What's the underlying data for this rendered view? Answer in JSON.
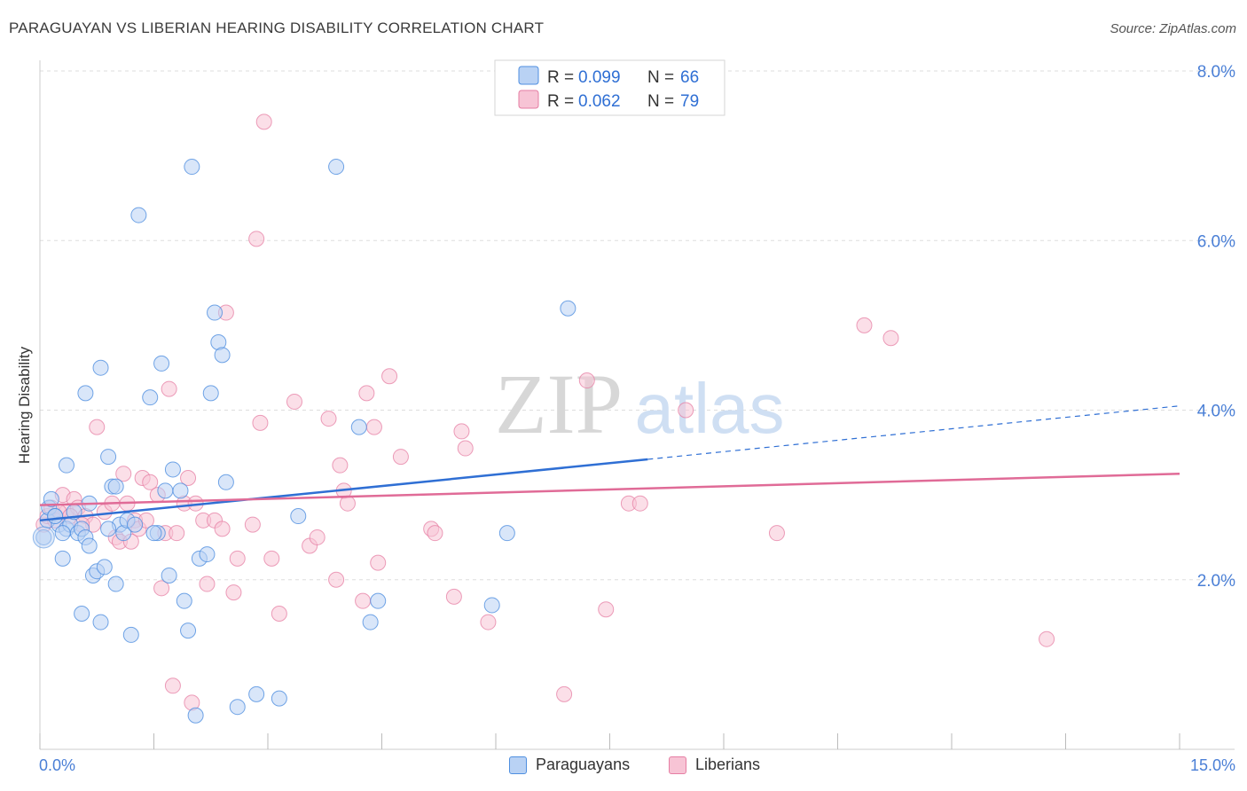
{
  "title": "PARAGUAYAN VS LIBERIAN HEARING DISABILITY CORRELATION CHART",
  "source": "Source: ZipAtlas.com",
  "watermark": {
    "zip": "ZIP",
    "atlas": "atlas"
  },
  "colors": {
    "blue": "#4f8fe0",
    "blue_fill": "#b9d2f4",
    "blue_line": "#2f6fd4",
    "pink": "#e67ea3",
    "pink_fill": "#f7c4d5",
    "pink_line": "#e06b97",
    "axis_text": "#4a7fd6",
    "grid": "#dddddd"
  },
  "legend_top": [
    {
      "r_label": "R = ",
      "r_value": "0.099",
      "n_label": "N = ",
      "n_value": "66"
    },
    {
      "r_label": "R = ",
      "r_value": "0.062",
      "n_label": "N = ",
      "n_value": "79"
    }
  ],
  "legend_bottom": [
    "Paraguayans",
    "Liberians"
  ],
  "chart_data": {
    "type": "scatter",
    "title": "PARAGUAYAN VS LIBERIAN HEARING DISABILITY CORRELATION CHART",
    "xlabel": "",
    "ylabel": "Hearing Disability",
    "xlim": [
      0,
      15
    ],
    "ylim": [
      0,
      8
    ],
    "x_tick_labels": [
      "0.0%",
      "15.0%"
    ],
    "y_ticks": [
      2,
      4,
      6,
      8
    ],
    "y_tick_labels": [
      "2.0%",
      "4.0%",
      "6.0%",
      "8.0%"
    ],
    "x_minor_ticks": [
      0,
      1.5,
      3,
      4.5,
      6,
      7.5,
      9,
      10.5,
      12,
      13.5,
      15
    ],
    "series": [
      {
        "name": "Paraguayans",
        "r": 0.099,
        "n": 66,
        "trend": {
          "x_solid": [
            0,
            8.0
          ],
          "x_dashed": [
            8.0,
            15
          ],
          "y_at": [
            2.7,
            4.05
          ]
        },
        "points": [
          [
            0.05,
            2.5
          ],
          [
            0.1,
            2.7
          ],
          [
            0.12,
            2.85
          ],
          [
            0.15,
            2.95
          ],
          [
            0.2,
            2.75
          ],
          [
            0.25,
            2.65
          ],
          [
            0.3,
            2.25
          ],
          [
            0.35,
            2.6
          ],
          [
            0.4,
            2.65
          ],
          [
            0.5,
            2.55
          ],
          [
            0.55,
            2.6
          ],
          [
            0.6,
            2.5
          ],
          [
            0.65,
            2.4
          ],
          [
            0.35,
            3.35
          ],
          [
            0.6,
            4.2
          ],
          [
            0.8,
            4.5
          ],
          [
            0.9,
            3.45
          ],
          [
            0.95,
            3.1
          ],
          [
            1.0,
            3.1
          ],
          [
            1.05,
            2.65
          ],
          [
            1.1,
            2.55
          ],
          [
            0.7,
            2.05
          ],
          [
            0.75,
            2.1
          ],
          [
            0.85,
            2.15
          ],
          [
            1.0,
            1.95
          ],
          [
            1.15,
            2.7
          ],
          [
            0.55,
            1.6
          ],
          [
            0.8,
            1.5
          ],
          [
            1.2,
            1.35
          ],
          [
            1.3,
            6.3
          ],
          [
            1.45,
            4.15
          ],
          [
            1.55,
            2.55
          ],
          [
            1.6,
            4.55
          ],
          [
            1.65,
            3.05
          ],
          [
            1.7,
            2.05
          ],
          [
            1.75,
            3.3
          ],
          [
            1.85,
            3.05
          ],
          [
            1.9,
            1.75
          ],
          [
            1.95,
            1.4
          ],
          [
            2.0,
            6.87
          ],
          [
            2.05,
            0.4
          ],
          [
            2.1,
            2.25
          ],
          [
            2.2,
            2.3
          ],
          [
            2.25,
            4.2
          ],
          [
            2.3,
            5.15
          ],
          [
            2.35,
            4.8
          ],
          [
            2.4,
            4.65
          ],
          [
            2.45,
            3.15
          ],
          [
            2.6,
            0.5
          ],
          [
            2.85,
            0.65
          ],
          [
            3.15,
            0.6
          ],
          [
            3.4,
            2.75
          ],
          [
            3.9,
            6.87
          ],
          [
            4.2,
            3.8
          ],
          [
            4.35,
            1.5
          ],
          [
            4.45,
            1.75
          ],
          [
            6.15,
            2.55
          ],
          [
            5.95,
            1.7
          ],
          [
            6.95,
            5.2
          ],
          [
            0.2,
            2.75
          ],
          [
            0.3,
            2.55
          ],
          [
            0.45,
            2.8
          ],
          [
            0.9,
            2.6
          ],
          [
            1.25,
            2.65
          ],
          [
            0.65,
            2.9
          ],
          [
            1.5,
            2.55
          ]
        ]
      },
      {
        "name": "Liberians",
        "r": 0.062,
        "n": 79,
        "trend": {
          "x_solid": [
            0,
            15
          ],
          "y_at": [
            2.88,
            3.25
          ]
        },
        "points": [
          [
            0.05,
            2.65
          ],
          [
            0.1,
            2.75
          ],
          [
            0.15,
            2.85
          ],
          [
            0.2,
            2.7
          ],
          [
            0.3,
            3.0
          ],
          [
            0.35,
            2.8
          ],
          [
            0.45,
            2.95
          ],
          [
            0.5,
            2.85
          ],
          [
            0.6,
            2.75
          ],
          [
            0.7,
            2.65
          ],
          [
            0.75,
            3.8
          ],
          [
            0.85,
            2.8
          ],
          [
            0.95,
            2.9
          ],
          [
            1.0,
            2.5
          ],
          [
            1.05,
            2.45
          ],
          [
            1.1,
            3.25
          ],
          [
            1.15,
            2.9
          ],
          [
            1.25,
            2.7
          ],
          [
            1.3,
            2.6
          ],
          [
            1.35,
            3.2
          ],
          [
            1.4,
            2.7
          ],
          [
            1.45,
            3.15
          ],
          [
            1.55,
            3.0
          ],
          [
            1.6,
            1.9
          ],
          [
            1.65,
            2.55
          ],
          [
            1.7,
            4.25
          ],
          [
            1.8,
            2.55
          ],
          [
            1.9,
            2.9
          ],
          [
            1.95,
            3.2
          ],
          [
            2.05,
            2.9
          ],
          [
            2.15,
            2.7
          ],
          [
            2.2,
            1.95
          ],
          [
            2.3,
            2.7
          ],
          [
            2.4,
            2.6
          ],
          [
            2.45,
            5.15
          ],
          [
            2.55,
            1.85
          ],
          [
            2.6,
            2.25
          ],
          [
            2.8,
            2.65
          ],
          [
            2.9,
            3.85
          ],
          [
            2.95,
            7.4
          ],
          [
            2.85,
            6.02
          ],
          [
            3.05,
            2.25
          ],
          [
            3.15,
            1.6
          ],
          [
            3.35,
            4.1
          ],
          [
            3.55,
            2.4
          ],
          [
            3.65,
            2.5
          ],
          [
            3.8,
            3.9
          ],
          [
            3.9,
            2.0
          ],
          [
            3.95,
            3.35
          ],
          [
            4.0,
            3.05
          ],
          [
            4.05,
            2.9
          ],
          [
            4.25,
            1.75
          ],
          [
            4.3,
            4.2
          ],
          [
            4.4,
            3.8
          ],
          [
            4.45,
            2.2
          ],
          [
            4.6,
            4.4
          ],
          [
            4.75,
            3.45
          ],
          [
            5.15,
            2.6
          ],
          [
            5.2,
            2.55
          ],
          [
            5.45,
            1.8
          ],
          [
            5.6,
            3.55
          ],
          [
            5.55,
            3.75
          ],
          [
            5.9,
            1.5
          ],
          [
            6.9,
            0.65
          ],
          [
            7.2,
            4.35
          ],
          [
            7.45,
            1.65
          ],
          [
            7.75,
            2.9
          ],
          [
            7.9,
            2.9
          ],
          [
            8.5,
            4.0
          ],
          [
            9.7,
            2.55
          ],
          [
            10.85,
            5.0
          ],
          [
            11.2,
            4.85
          ],
          [
            13.25,
            1.3
          ],
          [
            1.2,
            2.45
          ],
          [
            1.75,
            0.75
          ],
          [
            2.0,
            0.55
          ],
          [
            0.25,
            2.8
          ],
          [
            0.4,
            2.75
          ],
          [
            0.55,
            2.65
          ]
        ]
      }
    ]
  }
}
